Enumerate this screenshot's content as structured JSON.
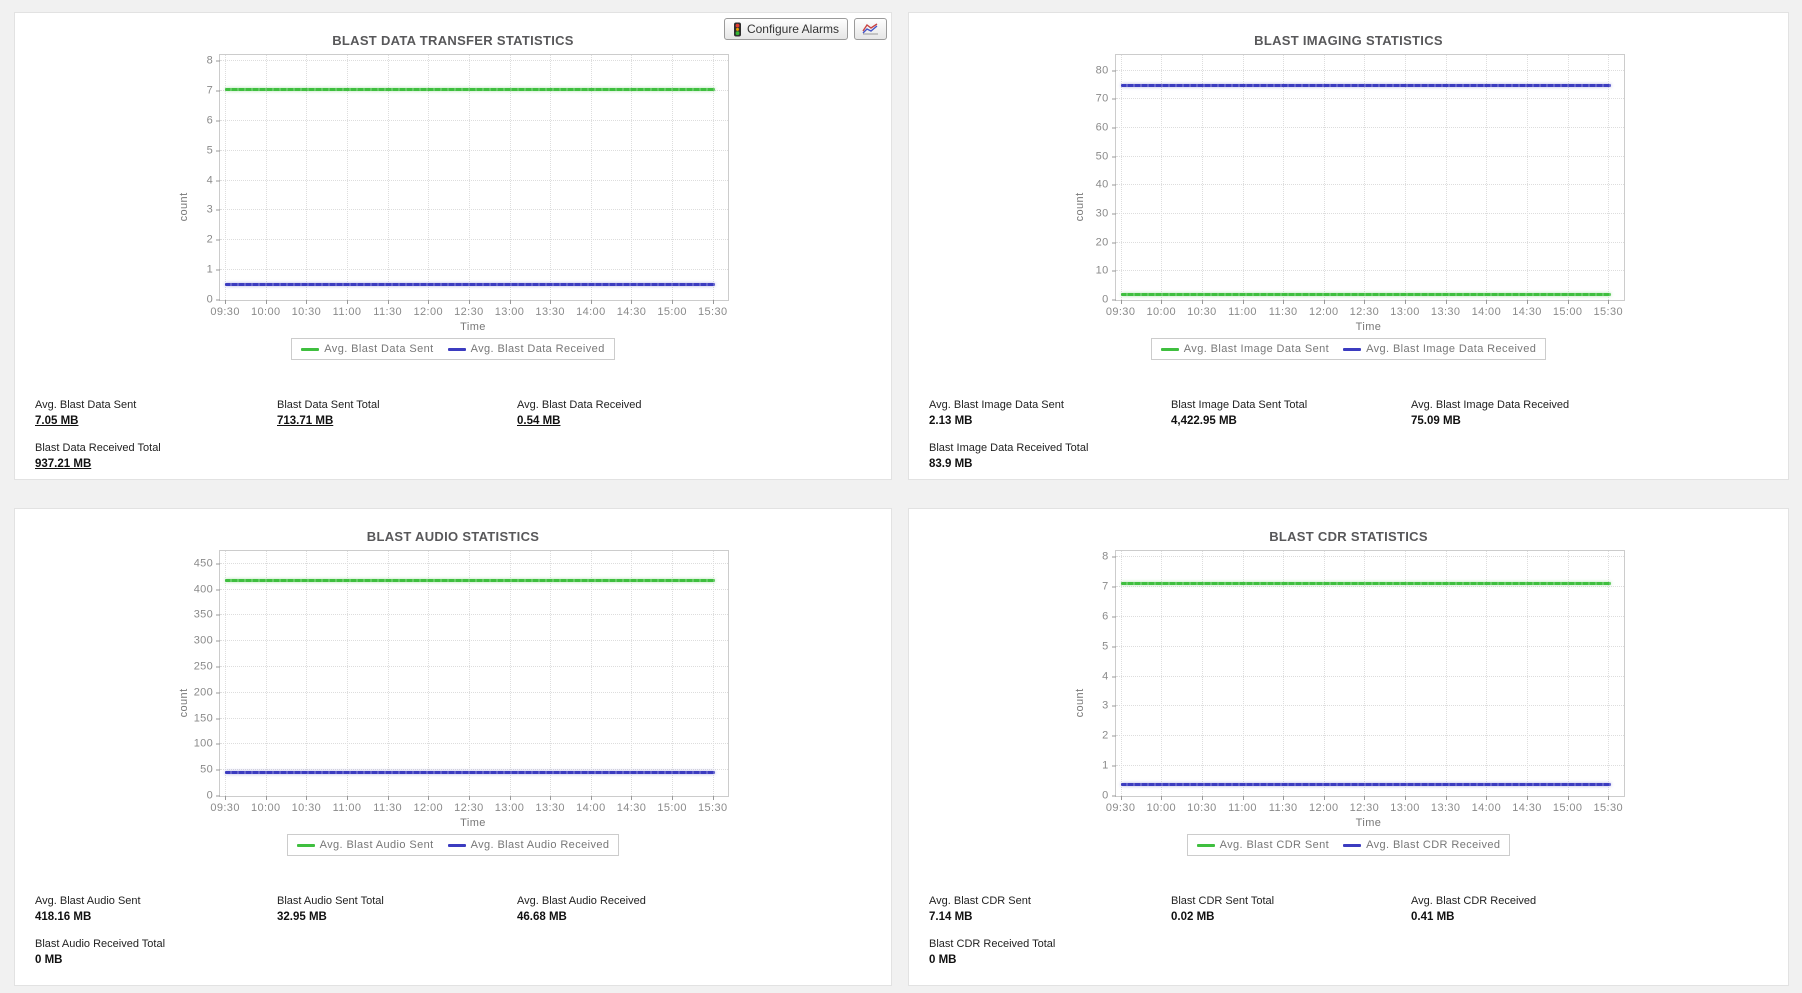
{
  "toolbar": {
    "configure_alarms_label": "Configure Alarms",
    "configure_alarms_icon": "traffic-light-icon",
    "chart_button_icon": "line-chart-icon"
  },
  "colors": {
    "sent_series_green": "#3fbf3f",
    "received_series_blue": "#3c3cc0",
    "panel_background": "#ffffff",
    "page_background": "#f1f1f1"
  },
  "panels": [
    {
      "title": "BLAST DATA TRANSFER STATISTICS",
      "stats": [
        {
          "label": "Avg. Blast Data Sent",
          "value": "7.05 MB",
          "link": true
        },
        {
          "label": "Blast Data Sent Total",
          "value": "713.71 MB",
          "link": true
        },
        {
          "label": "Avg. Blast Data Received",
          "value": "0.54 MB",
          "link": true
        },
        {
          "label": "Blast Data Received Total",
          "value": "937.21 MB",
          "link": true
        }
      ]
    },
    {
      "title": "BLAST IMAGING STATISTICS",
      "stats": [
        {
          "label": "Avg. Blast Image Data Sent",
          "value": "2.13 MB",
          "link": false
        },
        {
          "label": "Blast Image Data Sent Total",
          "value": "4,422.95 MB",
          "link": false
        },
        {
          "label": "Avg. Blast Image Data Received",
          "value": "75.09 MB",
          "link": false
        },
        {
          "label": "Blast Image Data Received Total",
          "value": "83.9 MB",
          "link": false
        }
      ]
    },
    {
      "title": "BLAST AUDIO STATISTICS",
      "stats": [
        {
          "label": "Avg. Blast Audio Sent",
          "value": "418.16 MB",
          "link": false
        },
        {
          "label": "Blast Audio Sent Total",
          "value": "32.95 MB",
          "link": false
        },
        {
          "label": "Avg. Blast Audio Received",
          "value": "46.68 MB",
          "link": false
        },
        {
          "label": "Blast Audio Received Total",
          "value": "0 MB",
          "link": false
        }
      ]
    },
    {
      "title": "BLAST CDR STATISTICS",
      "stats": [
        {
          "label": "Avg. Blast CDR Sent",
          "value": "7.14 MB",
          "link": false
        },
        {
          "label": "Blast CDR Sent Total",
          "value": "0.02 MB",
          "link": false
        },
        {
          "label": "Avg. Blast CDR Received",
          "value": "0.41 MB",
          "link": false
        },
        {
          "label": "Blast CDR Received Total",
          "value": "0 MB",
          "link": false
        }
      ]
    }
  ],
  "chart_data": [
    {
      "type": "line",
      "title": "BLAST DATA TRANSFER STATISTICS",
      "xlabel": "Time",
      "ylabel": "count",
      "x": [
        "09:30",
        "10:00",
        "10:30",
        "11:00",
        "11:30",
        "12:00",
        "12:30",
        "13:00",
        "13:30",
        "14:00",
        "14:30",
        "15:00",
        "15:30"
      ],
      "yticks": [
        0,
        1,
        2,
        3,
        4,
        5,
        6,
        7,
        8
      ],
      "ymax": 8.2,
      "grid": true,
      "legend_position": "bottom",
      "series": [
        {
          "name": "Avg. Blast Data Sent",
          "color": "#3fbf3f",
          "value": 7.05
        },
        {
          "name": "Avg. Blast Data Received",
          "color": "#3c3cc0",
          "value": 0.54
        }
      ]
    },
    {
      "type": "line",
      "title": "BLAST IMAGING STATISTICS",
      "xlabel": "Time",
      "ylabel": "count",
      "x": [
        "09:30",
        "10:00",
        "10:30",
        "11:00",
        "11:30",
        "12:00",
        "12:30",
        "13:00",
        "13:30",
        "14:00",
        "14:30",
        "15:00",
        "15:30"
      ],
      "yticks": [
        0,
        10,
        20,
        30,
        40,
        50,
        60,
        70,
        80
      ],
      "ymax": 85.5,
      "grid": true,
      "legend_position": "bottom",
      "series": [
        {
          "name": "Avg. Blast Image Data Sent",
          "color": "#3fbf3f",
          "value": 2.13
        },
        {
          "name": "Avg. Blast Image Data Received",
          "color": "#3c3cc0",
          "value": 75.09
        }
      ]
    },
    {
      "type": "line",
      "title": "BLAST AUDIO STATISTICS",
      "xlabel": "Time",
      "ylabel": "count",
      "x": [
        "09:30",
        "10:00",
        "10:30",
        "11:00",
        "11:30",
        "12:00",
        "12:30",
        "13:00",
        "13:30",
        "14:00",
        "14:30",
        "15:00",
        "15:30"
      ],
      "yticks": [
        0,
        50,
        100,
        150,
        200,
        250,
        300,
        350,
        400,
        450
      ],
      "ymax": 475,
      "grid": true,
      "legend_position": "bottom",
      "series": [
        {
          "name": "Avg. Blast Audio Sent",
          "color": "#3fbf3f",
          "value": 418.16
        },
        {
          "name": "Avg. Blast Audio Received",
          "color": "#3c3cc0",
          "value": 46.68
        }
      ]
    },
    {
      "type": "line",
      "title": "BLAST CDR STATISTICS",
      "xlabel": "Time",
      "ylabel": "count",
      "x": [
        "09:30",
        "10:00",
        "10:30",
        "11:00",
        "11:30",
        "12:00",
        "12:30",
        "13:00",
        "13:30",
        "14:00",
        "14:30",
        "15:00",
        "15:30"
      ],
      "yticks": [
        0,
        1,
        2,
        3,
        4,
        5,
        6,
        7,
        8
      ],
      "ymax": 8.2,
      "grid": true,
      "legend_position": "bottom",
      "series": [
        {
          "name": "Avg. Blast CDR Sent",
          "color": "#3fbf3f",
          "value": 7.14
        },
        {
          "name": "Avg. Blast CDR Received",
          "color": "#3c3cc0",
          "value": 0.41
        }
      ]
    }
  ]
}
